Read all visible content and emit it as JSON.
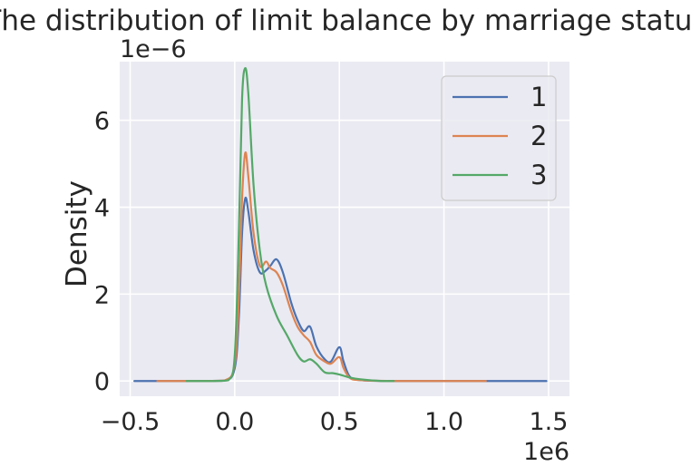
{
  "chart_data": {
    "type": "line",
    "title": "The distribution of limit balance by marriage status",
    "ylabel": "Density",
    "xlabel": "",
    "x_offset_label": "1e6",
    "y_offset_label": "1e−6",
    "xlim": [
      -0.55,
      1.6
    ],
    "ylim": [
      -0.35,
      7.35
    ],
    "xticks": [
      {
        "value": -0.5,
        "label": "−0.5"
      },
      {
        "value": 0.0,
        "label": "0.0"
      },
      {
        "value": 0.5,
        "label": "0.5"
      },
      {
        "value": 1.0,
        "label": "1.0"
      },
      {
        "value": 1.5,
        "label": "1.5"
      }
    ],
    "yticks": [
      {
        "value": 0,
        "label": "0"
      },
      {
        "value": 2,
        "label": "2"
      },
      {
        "value": 4,
        "label": "4"
      },
      {
        "value": 6,
        "label": "6"
      }
    ],
    "grid": true,
    "legend_position": "top-right",
    "colors": {
      "background": "#eaeaf2",
      "grid": "#ffffff",
      "text": "#262626"
    },
    "series": [
      {
        "name": "1",
        "color": "#4c72b0",
        "points": [
          [
            -0.48,
            0.0
          ],
          [
            -0.2,
            0.0
          ],
          [
            -0.05,
            0.01
          ],
          [
            0.0,
            0.3
          ],
          [
            0.02,
            1.5
          ],
          [
            0.035,
            3.4
          ],
          [
            0.05,
            4.2
          ],
          [
            0.065,
            3.9
          ],
          [
            0.09,
            3.0
          ],
          [
            0.12,
            2.5
          ],
          [
            0.15,
            2.55
          ],
          [
            0.17,
            2.65
          ],
          [
            0.2,
            2.8
          ],
          [
            0.23,
            2.5
          ],
          [
            0.27,
            1.8
          ],
          [
            0.3,
            1.4
          ],
          [
            0.33,
            1.15
          ],
          [
            0.36,
            1.25
          ],
          [
            0.39,
            0.8
          ],
          [
            0.43,
            0.5
          ],
          [
            0.46,
            0.45
          ],
          [
            0.5,
            0.78
          ],
          [
            0.52,
            0.45
          ],
          [
            0.55,
            0.1
          ],
          [
            0.6,
            0.02
          ],
          [
            0.75,
            0.0
          ],
          [
            1.0,
            0.0
          ],
          [
            1.49,
            0.0
          ]
        ]
      },
      {
        "name": "2",
        "color": "#dd8452",
        "points": [
          [
            -0.37,
            0.0
          ],
          [
            -0.2,
            0.0
          ],
          [
            -0.05,
            0.01
          ],
          [
            0.0,
            0.4
          ],
          [
            0.02,
            2.0
          ],
          [
            0.035,
            4.2
          ],
          [
            0.05,
            5.25
          ],
          [
            0.065,
            4.7
          ],
          [
            0.09,
            3.4
          ],
          [
            0.12,
            2.65
          ],
          [
            0.15,
            2.75
          ],
          [
            0.17,
            2.6
          ],
          [
            0.2,
            2.5
          ],
          [
            0.23,
            2.2
          ],
          [
            0.27,
            1.6
          ],
          [
            0.3,
            1.25
          ],
          [
            0.33,
            1.05
          ],
          [
            0.36,
            0.9
          ],
          [
            0.39,
            0.6
          ],
          [
            0.43,
            0.45
          ],
          [
            0.46,
            0.4
          ],
          [
            0.5,
            0.55
          ],
          [
            0.52,
            0.3
          ],
          [
            0.55,
            0.07
          ],
          [
            0.6,
            0.02
          ],
          [
            0.75,
            0.0
          ],
          [
            1.0,
            0.0
          ],
          [
            1.2,
            0.0
          ]
        ]
      },
      {
        "name": "3",
        "color": "#55a868",
        "points": [
          [
            -0.23,
            0.0
          ],
          [
            -0.1,
            0.0
          ],
          [
            -0.03,
            0.02
          ],
          [
            0.0,
            0.6
          ],
          [
            0.02,
            3.5
          ],
          [
            0.035,
            6.5
          ],
          [
            0.05,
            7.2
          ],
          [
            0.065,
            6.6
          ],
          [
            0.09,
            4.5
          ],
          [
            0.12,
            3.0
          ],
          [
            0.15,
            2.2
          ],
          [
            0.2,
            1.5
          ],
          [
            0.25,
            1.05
          ],
          [
            0.3,
            0.6
          ],
          [
            0.33,
            0.45
          ],
          [
            0.36,
            0.5
          ],
          [
            0.39,
            0.4
          ],
          [
            0.43,
            0.2
          ],
          [
            0.47,
            0.18
          ],
          [
            0.5,
            0.15
          ],
          [
            0.55,
            0.08
          ],
          [
            0.6,
            0.04
          ],
          [
            0.7,
            0.0
          ],
          [
            0.76,
            0.0
          ]
        ]
      }
    ]
  }
}
